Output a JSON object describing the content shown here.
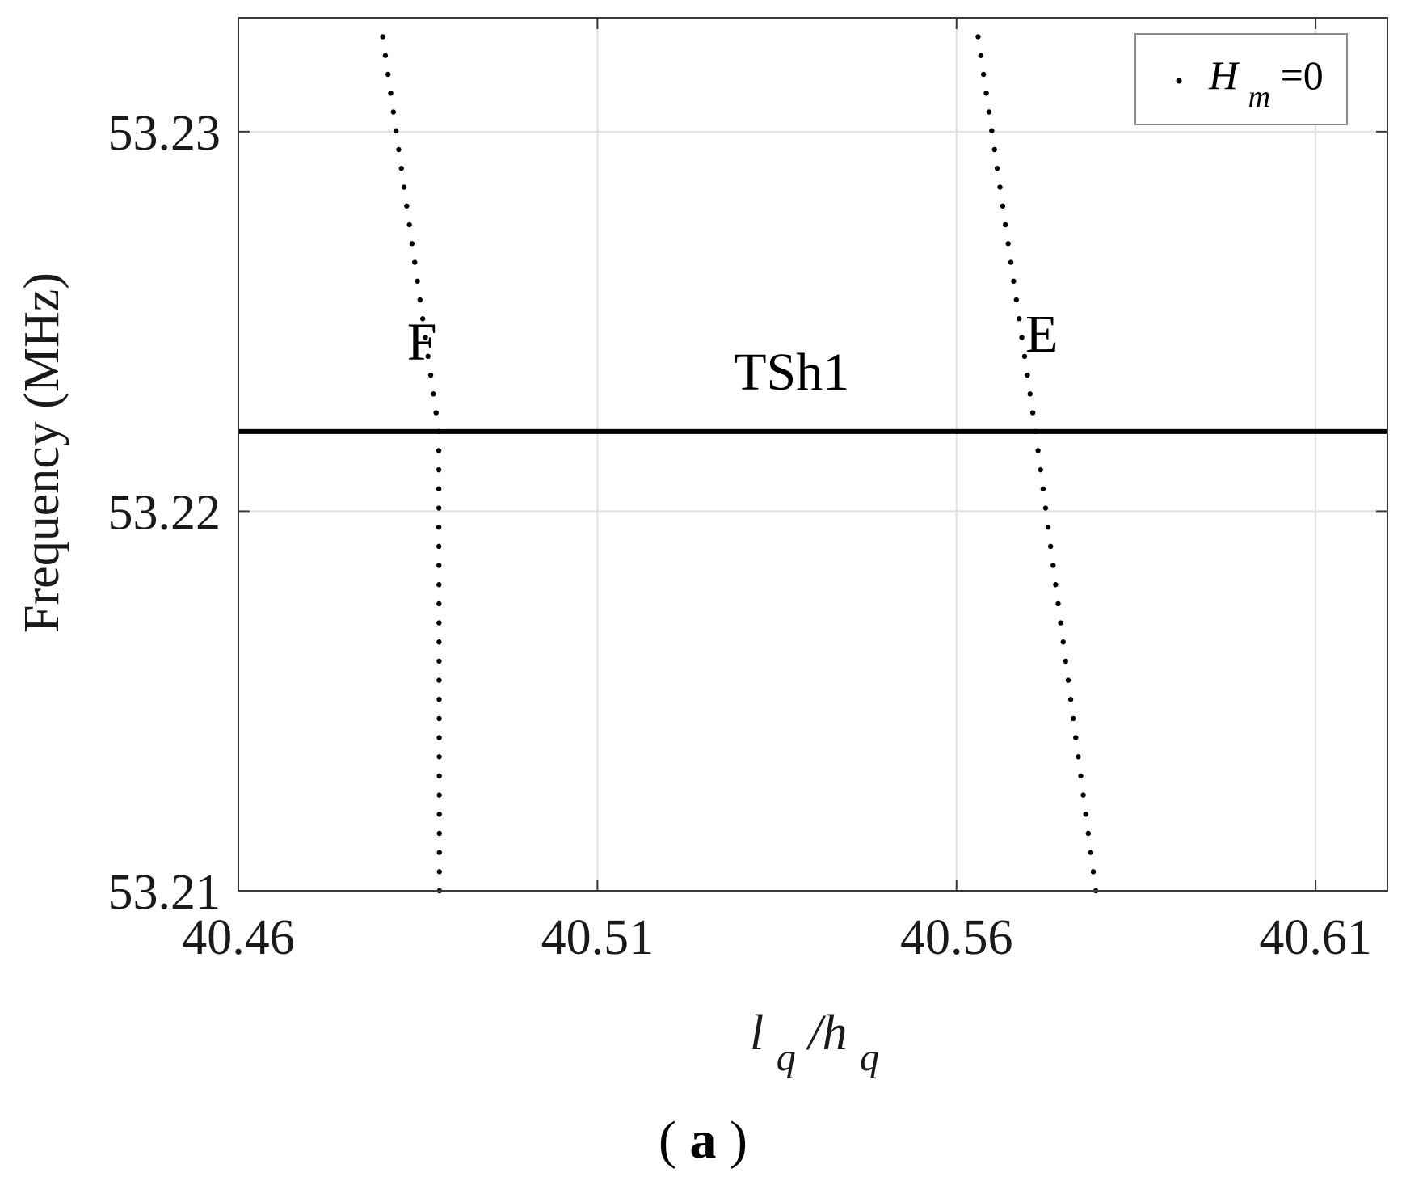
{
  "chart_data": {
    "type": "scatter",
    "xlabel": "l_q/h_q",
    "ylabel": "Frequency (MHz)",
    "xlim": [
      40.46,
      40.62
    ],
    "ylim": [
      53.21,
      53.233
    ],
    "xticks": [
      "40.46",
      "40.51",
      "40.56",
      "40.61"
    ],
    "yticks": [
      "53.21",
      "53.22",
      "53.23"
    ],
    "grid": true,
    "legend": {
      "placement": "top-right",
      "label": "H_m=0"
    },
    "series": [
      {
        "name": "H_m=0",
        "points": [
          [
            40.4801,
            53.2325
          ],
          [
            40.4879,
            53.2221
          ],
          [
            40.488,
            53.21
          ]
        ]
      },
      {
        "name": "H_m=0",
        "points": [
          [
            40.563,
            53.2325
          ],
          [
            40.571,
            53.2221
          ],
          [
            40.5794,
            53.21
          ]
        ]
      }
    ],
    "hline": {
      "label": "TSh1",
      "y": 53.2221
    },
    "annotations": [
      {
        "text": "F",
        "x": 40.4835,
        "y": 53.224
      },
      {
        "text": "E",
        "x": 40.5696,
        "y": 53.2242
      },
      {
        "text": "TSh1",
        "x": 40.529,
        "y": 53.2232
      }
    ],
    "caption": "(a)"
  },
  "labels": {
    "ylabel": "Frequency (MHz)",
    "xlabel_main": "l",
    "xlabel_sub1": "q",
    "xlabel_mid": "/h",
    "xlabel_sub2": "q",
    "legend_main": "H",
    "legend_sub": "m",
    "legend_tail": "=0",
    "caption_open": "(",
    "caption_letter": "a",
    "caption_close": ")"
  },
  "colors": {
    "line": "#000000",
    "grid": "#e0e0e0",
    "axes": "#3a3a3a"
  }
}
